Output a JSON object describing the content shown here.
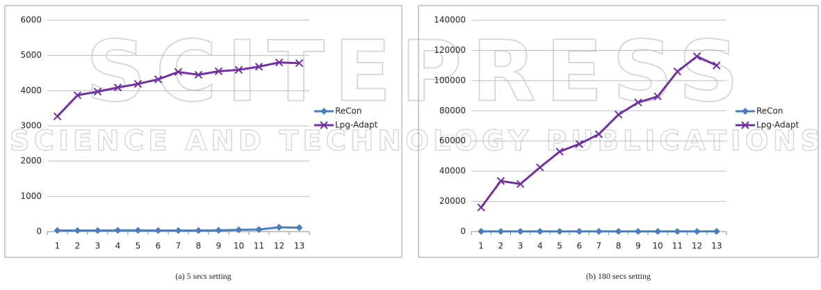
{
  "watermark": {
    "title": "SCITEPRESS",
    "subtitle": "SCIENCE AND TECHNOLOGY PUBLICATIONS"
  },
  "chart_data": [
    {
      "type": "line",
      "caption": "(a)  5 secs setting",
      "categories": [
        1,
        2,
        3,
        4,
        5,
        6,
        7,
        8,
        9,
        10,
        11,
        12,
        13
      ],
      "series": [
        {
          "name": "ReCon",
          "color": "#4a7ebb",
          "marker": "diamond",
          "values": [
            30,
            30,
            30,
            35,
            35,
            30,
            30,
            30,
            35,
            50,
            60,
            120,
            110
          ]
        },
        {
          "name": "Lpg-Adapt",
          "color": "#7030a0",
          "marker": "x",
          "values": [
            3270,
            3870,
            3970,
            4090,
            4190,
            4320,
            4530,
            4450,
            4550,
            4590,
            4680,
            4800,
            4780
          ]
        }
      ],
      "ylim": [
        0,
        6000
      ],
      "yticks": [
        0,
        1000,
        2000,
        3000,
        4000,
        5000,
        6000
      ],
      "grid": true,
      "legend": "right"
    },
    {
      "type": "line",
      "caption": "(b)  180 secs setting",
      "categories": [
        1,
        2,
        3,
        4,
        5,
        6,
        7,
        8,
        9,
        10,
        11,
        12,
        13
      ],
      "series": [
        {
          "name": "ReCon",
          "color": "#4a7ebb",
          "marker": "diamond",
          "values": [
            100,
            100,
            100,
            100,
            100,
            100,
            100,
            100,
            100,
            100,
            100,
            100,
            100
          ]
        },
        {
          "name": "Lpg-Adapt",
          "color": "#7030a0",
          "marker": "x",
          "values": [
            16000,
            33500,
            31500,
            42500,
            53000,
            58000,
            64500,
            77500,
            85500,
            89500,
            106000,
            116000,
            110000
          ]
        }
      ],
      "ylim": [
        0,
        140000
      ],
      "yticks": [
        0,
        20000,
        40000,
        60000,
        80000,
        100000,
        120000,
        140000
      ],
      "grid": true,
      "legend": "right"
    }
  ]
}
